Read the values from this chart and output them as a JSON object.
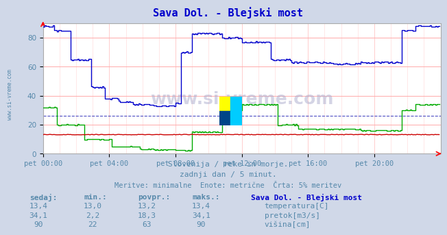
{
  "title": "Sava Dol. - Blejski most",
  "title_color": "#0000cc",
  "bg_color": "#d0d8e8",
  "plot_bg_color": "#ffffff",
  "grid_color_major": "#ffaaaa",
  "grid_color_minor": "#ffdddd",
  "x_labels": [
    "pet 00:00",
    "pet 04:00",
    "pet 08:00",
    "pet 12:00",
    "pet 16:00",
    "pet 20:00"
  ],
  "x_ticks": [
    0,
    48,
    96,
    144,
    192,
    240
  ],
  "x_max": 288,
  "y_min": 0,
  "y_max": 90,
  "y_ticks": [
    0,
    20,
    40,
    60,
    80
  ],
  "text_line1": "Slovenija / reke in morje.",
  "text_line2": "zadnji dan / 5 minut.",
  "text_line3": "Meritve: minimalne  Enote: metrične  Črta: 5% meritev",
  "text_color": "#5588aa",
  "table_header": [
    "sedaj:",
    "min.:",
    "povpr.:",
    "maks.:"
  ],
  "table_bold_col": "Sava Dol. - Blejski most",
  "table_data": [
    [
      "13,4",
      "13,0",
      "13,2",
      "13,4",
      "temperatura[C]",
      "#cc0000"
    ],
    [
      "34,1",
      "2,2",
      "18,3",
      "34,1",
      "pretok[m3/s]",
      "#00aa00"
    ],
    [
      "90",
      "22",
      "63",
      "90",
      "višina[cm]",
      "#0000cc"
    ]
  ],
  "watermark_text": "www.si-vreme.com",
  "logo_colors": [
    "#ffff00",
    "#00ccff",
    "#004488"
  ],
  "avg_line_color": "#0000aa",
  "avg_line_value": 26,
  "temp_color": "#cc0000",
  "flow_color": "#00aa00",
  "height_color": "#0000cc",
  "sidebar_text": "www.si-vreme.com",
  "sidebar_color": "#5588aa"
}
